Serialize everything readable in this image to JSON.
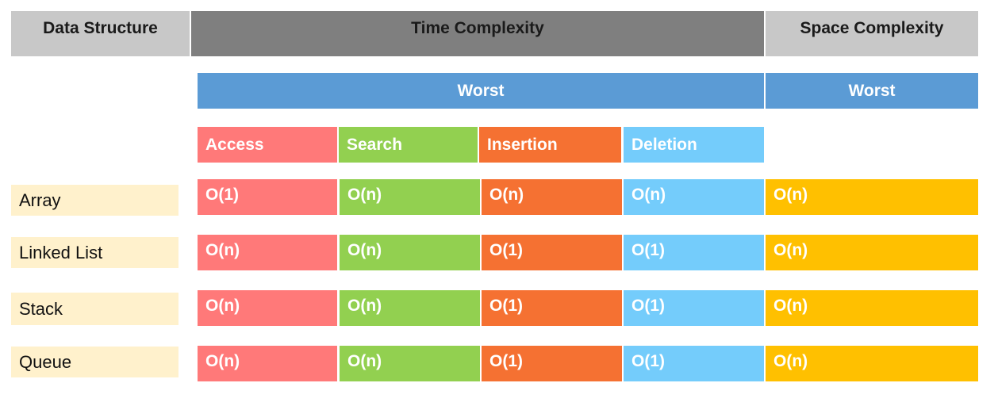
{
  "headers": {
    "data_structure": "Data Structure",
    "time_complexity": "Time Complexity",
    "space_complexity": "Space Complexity"
  },
  "worst": {
    "time": "Worst",
    "space": "Worst"
  },
  "operations": [
    "Access",
    "Search",
    "Insertion",
    "Deletion"
  ],
  "rows": [
    {
      "name": "Array",
      "access": "O(1)",
      "search": "O(n)",
      "insertion": "O(n)",
      "deletion": "O(n)",
      "space": "O(n)"
    },
    {
      "name": "Linked List",
      "access": "O(n)",
      "search": "O(n)",
      "insertion": "O(1)",
      "deletion": "O(1)",
      "space": "O(n)"
    },
    {
      "name": "Stack",
      "access": "O(n)",
      "search": "O(n)",
      "insertion": "O(1)",
      "deletion": "O(1)",
      "space": "O(n)"
    },
    {
      "name": "Queue",
      "access": "O(n)",
      "search": "O(n)",
      "insertion": "O(1)",
      "deletion": "O(1)",
      "space": "O(n)"
    }
  ],
  "colors": {
    "header_gray": "#c8c8c8",
    "header_dark": "#7f7f7f",
    "worst_blue": "#5b9bd5",
    "access": "#ff7979",
    "search": "#92d050",
    "insertion": "#f57132",
    "deletion": "#74ccfb",
    "space": "#ffc000",
    "label_bg": "#fff1cc"
  }
}
